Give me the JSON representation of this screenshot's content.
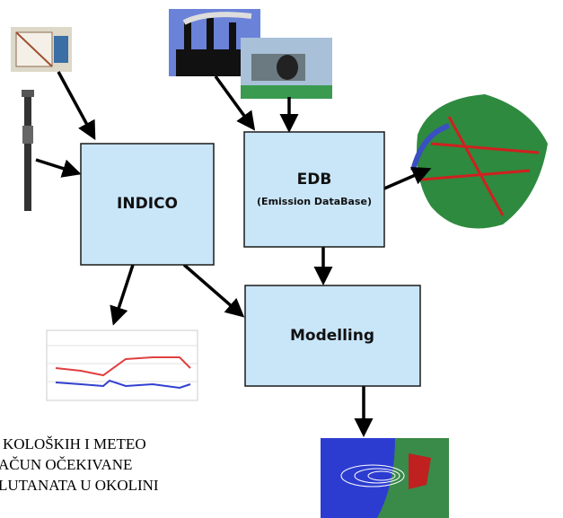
{
  "nodes": [
    {
      "label": "INDICO"
    },
    {
      "label": "EDB",
      "sublabel": "(Emission DataBase)"
    },
    {
      "label": "Modelling"
    }
  ],
  "text_lines": [
    "KOLOŠKIH I METEO",
    "AČUN OČEKIVANE",
    "LUTANATA U OKOLINI"
  ]
}
